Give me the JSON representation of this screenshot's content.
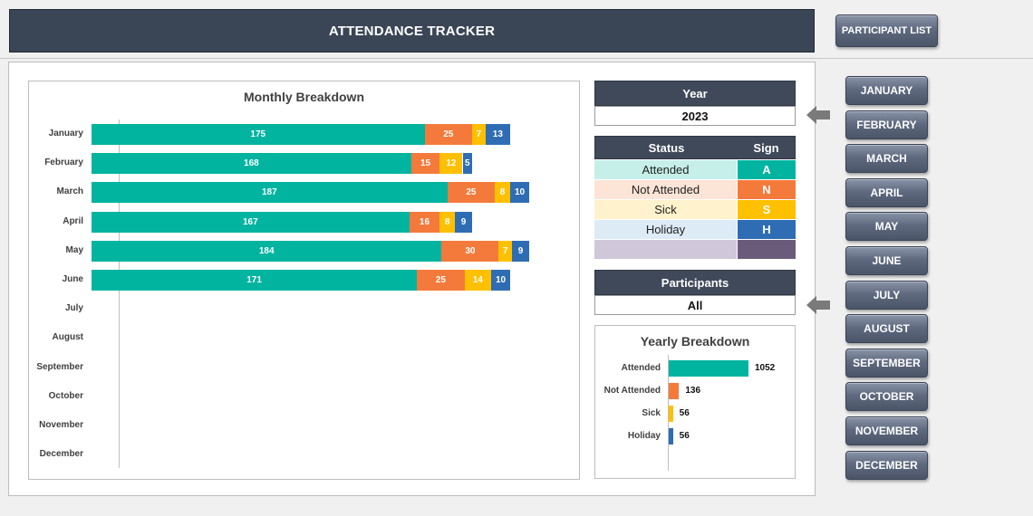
{
  "header": {
    "title": "ATTENDANCE TRACKER",
    "participant_list_label": "PARTICIPANT LIST"
  },
  "months": [
    "JANUARY",
    "FEBRUARY",
    "MARCH",
    "APRIL",
    "MAY",
    "JUNE",
    "JULY",
    "AUGUST",
    "SEPTEMBER",
    "OCTOBER",
    "NOVEMBER",
    "DECEMBER"
  ],
  "year": {
    "label": "Year",
    "value": "2023"
  },
  "status": {
    "header_status": "Status",
    "header_sign": "Sign",
    "rows": [
      {
        "name": "Attended",
        "sign": "A"
      },
      {
        "name": "Not Attended",
        "sign": "N"
      },
      {
        "name": "Sick",
        "sign": "S"
      },
      {
        "name": "Holiday",
        "sign": "H"
      },
      {
        "name": "",
        "sign": ""
      }
    ]
  },
  "participants": {
    "label": "Participants",
    "value": "All"
  },
  "colors": {
    "attended": "#00b4a0",
    "not_attended": "#f47a3c",
    "sick": "#ffc000",
    "holiday": "#2e6db4",
    "attended_light": "#c6efe9",
    "not_attended_light": "#fce4d6",
    "sick_light": "#fff2cc",
    "holiday_light": "#ddebf7",
    "blank_light": "#d0c8da",
    "blank_dark": "#6b5b7b"
  },
  "chart_data": [
    {
      "type": "bar",
      "title": "Monthly Breakdown",
      "orientation": "horizontal",
      "stacked": true,
      "categories": [
        "January",
        "February",
        "March",
        "April",
        "May",
        "June",
        "July",
        "August",
        "September",
        "October",
        "November",
        "December"
      ],
      "series": [
        {
          "name": "Attended",
          "values": [
            175,
            168,
            187,
            167,
            184,
            171,
            0,
            0,
            0,
            0,
            0,
            0
          ]
        },
        {
          "name": "Not Attended",
          "values": [
            25,
            15,
            25,
            16,
            30,
            25,
            0,
            0,
            0,
            0,
            0,
            0
          ]
        },
        {
          "name": "Sick",
          "values": [
            7,
            12,
            8,
            8,
            7,
            14,
            0,
            0,
            0,
            0,
            0,
            0
          ]
        },
        {
          "name": "Holiday",
          "values": [
            13,
            5,
            10,
            9,
            9,
            10,
            0,
            0,
            0,
            0,
            0,
            0
          ]
        }
      ]
    },
    {
      "type": "bar",
      "title": "Yearly Breakdown",
      "orientation": "horizontal",
      "categories": [
        "Attended",
        "Not Attended",
        "Sick",
        "Holiday"
      ],
      "values": [
        1052,
        136,
        56,
        56
      ]
    }
  ]
}
